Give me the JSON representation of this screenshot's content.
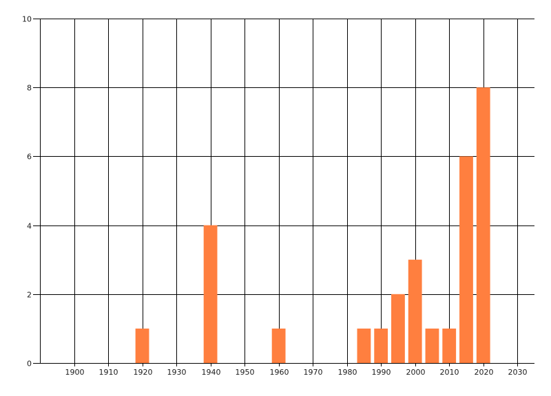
{
  "chart_data": {
    "type": "bar",
    "title": "",
    "xlabel": "",
    "ylabel": "",
    "x": [
      1920,
      1940,
      1960,
      1985,
      1990,
      1995,
      2000,
      2005,
      2010,
      2015,
      2020
    ],
    "values": [
      1,
      4,
      1,
      1,
      1,
      2,
      3,
      1,
      1,
      6,
      8
    ],
    "xlim": [
      1890,
      2035
    ],
    "ylim": [
      0,
      10
    ],
    "xticks": [
      1900,
      1910,
      1920,
      1930,
      1940,
      1950,
      1960,
      1970,
      1980,
      1990,
      2000,
      2010,
      2020,
      2030
    ],
    "yticks": [
      0,
      2,
      4,
      6,
      8,
      10
    ],
    "bar_width_years": 4,
    "grid": true,
    "legend": "none",
    "colors": {
      "bar": "#ff7f3f",
      "grid": "#000000",
      "text": "#1a1a1a"
    }
  }
}
